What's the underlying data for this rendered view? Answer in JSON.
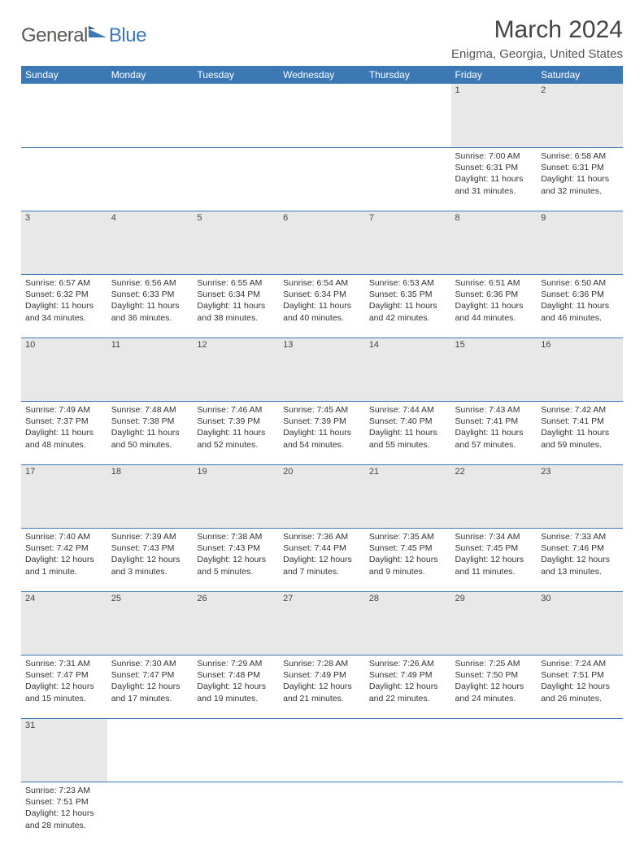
{
  "logo": {
    "text1": "General",
    "text2": "Blue"
  },
  "title": "March 2024",
  "location": "Enigma, Georgia, United States",
  "colors": {
    "header_bg": "#3c78b4",
    "daynum_bg": "#e8e8e8",
    "rule": "#3c78b4"
  },
  "weekdays": [
    "Sunday",
    "Monday",
    "Tuesday",
    "Wednesday",
    "Thursday",
    "Friday",
    "Saturday"
  ],
  "weeks": [
    [
      null,
      null,
      null,
      null,
      null,
      {
        "n": "1",
        "sunrise": "7:00 AM",
        "sunset": "6:31 PM",
        "day_h": "11",
        "day_m": "31"
      },
      {
        "n": "2",
        "sunrise": "6:58 AM",
        "sunset": "6:31 PM",
        "day_h": "11",
        "day_m": "32"
      }
    ],
    [
      {
        "n": "3",
        "sunrise": "6:57 AM",
        "sunset": "6:32 PM",
        "day_h": "11",
        "day_m": "34"
      },
      {
        "n": "4",
        "sunrise": "6:56 AM",
        "sunset": "6:33 PM",
        "day_h": "11",
        "day_m": "36"
      },
      {
        "n": "5",
        "sunrise": "6:55 AM",
        "sunset": "6:34 PM",
        "day_h": "11",
        "day_m": "38"
      },
      {
        "n": "6",
        "sunrise": "6:54 AM",
        "sunset": "6:34 PM",
        "day_h": "11",
        "day_m": "40"
      },
      {
        "n": "7",
        "sunrise": "6:53 AM",
        "sunset": "6:35 PM",
        "day_h": "11",
        "day_m": "42"
      },
      {
        "n": "8",
        "sunrise": "6:51 AM",
        "sunset": "6:36 PM",
        "day_h": "11",
        "day_m": "44"
      },
      {
        "n": "9",
        "sunrise": "6:50 AM",
        "sunset": "6:36 PM",
        "day_h": "11",
        "day_m": "46"
      }
    ],
    [
      {
        "n": "10",
        "sunrise": "7:49 AM",
        "sunset": "7:37 PM",
        "day_h": "11",
        "day_m": "48"
      },
      {
        "n": "11",
        "sunrise": "7:48 AM",
        "sunset": "7:38 PM",
        "day_h": "11",
        "day_m": "50"
      },
      {
        "n": "12",
        "sunrise": "7:46 AM",
        "sunset": "7:39 PM",
        "day_h": "11",
        "day_m": "52"
      },
      {
        "n": "13",
        "sunrise": "7:45 AM",
        "sunset": "7:39 PM",
        "day_h": "11",
        "day_m": "54"
      },
      {
        "n": "14",
        "sunrise": "7:44 AM",
        "sunset": "7:40 PM",
        "day_h": "11",
        "day_m": "55"
      },
      {
        "n": "15",
        "sunrise": "7:43 AM",
        "sunset": "7:41 PM",
        "day_h": "11",
        "day_m": "57"
      },
      {
        "n": "16",
        "sunrise": "7:42 AM",
        "sunset": "7:41 PM",
        "day_h": "11",
        "day_m": "59"
      }
    ],
    [
      {
        "n": "17",
        "sunrise": "7:40 AM",
        "sunset": "7:42 PM",
        "day_h": "12",
        "day_m": "1",
        "singular": true
      },
      {
        "n": "18",
        "sunrise": "7:39 AM",
        "sunset": "7:43 PM",
        "day_h": "12",
        "day_m": "3"
      },
      {
        "n": "19",
        "sunrise": "7:38 AM",
        "sunset": "7:43 PM",
        "day_h": "12",
        "day_m": "5"
      },
      {
        "n": "20",
        "sunrise": "7:36 AM",
        "sunset": "7:44 PM",
        "day_h": "12",
        "day_m": "7"
      },
      {
        "n": "21",
        "sunrise": "7:35 AM",
        "sunset": "7:45 PM",
        "day_h": "12",
        "day_m": "9"
      },
      {
        "n": "22",
        "sunrise": "7:34 AM",
        "sunset": "7:45 PM",
        "day_h": "12",
        "day_m": "11"
      },
      {
        "n": "23",
        "sunrise": "7:33 AM",
        "sunset": "7:46 PM",
        "day_h": "12",
        "day_m": "13"
      }
    ],
    [
      {
        "n": "24",
        "sunrise": "7:31 AM",
        "sunset": "7:47 PM",
        "day_h": "12",
        "day_m": "15"
      },
      {
        "n": "25",
        "sunrise": "7:30 AM",
        "sunset": "7:47 PM",
        "day_h": "12",
        "day_m": "17"
      },
      {
        "n": "26",
        "sunrise": "7:29 AM",
        "sunset": "7:48 PM",
        "day_h": "12",
        "day_m": "19"
      },
      {
        "n": "27",
        "sunrise": "7:28 AM",
        "sunset": "7:49 PM",
        "day_h": "12",
        "day_m": "21"
      },
      {
        "n": "28",
        "sunrise": "7:26 AM",
        "sunset": "7:49 PM",
        "day_h": "12",
        "day_m": "22"
      },
      {
        "n": "29",
        "sunrise": "7:25 AM",
        "sunset": "7:50 PM",
        "day_h": "12",
        "day_m": "24"
      },
      {
        "n": "30",
        "sunrise": "7:24 AM",
        "sunset": "7:51 PM",
        "day_h": "12",
        "day_m": "26"
      }
    ],
    [
      {
        "n": "31",
        "sunrise": "7:23 AM",
        "sunset": "7:51 PM",
        "day_h": "12",
        "day_m": "28"
      },
      null,
      null,
      null,
      null,
      null,
      null
    ]
  ],
  "labels": {
    "sunrise": "Sunrise:",
    "sunset": "Sunset:",
    "daylight": "Daylight:",
    "hours": "hours",
    "and": "and",
    "minutes": "minutes.",
    "minute": "minute."
  }
}
